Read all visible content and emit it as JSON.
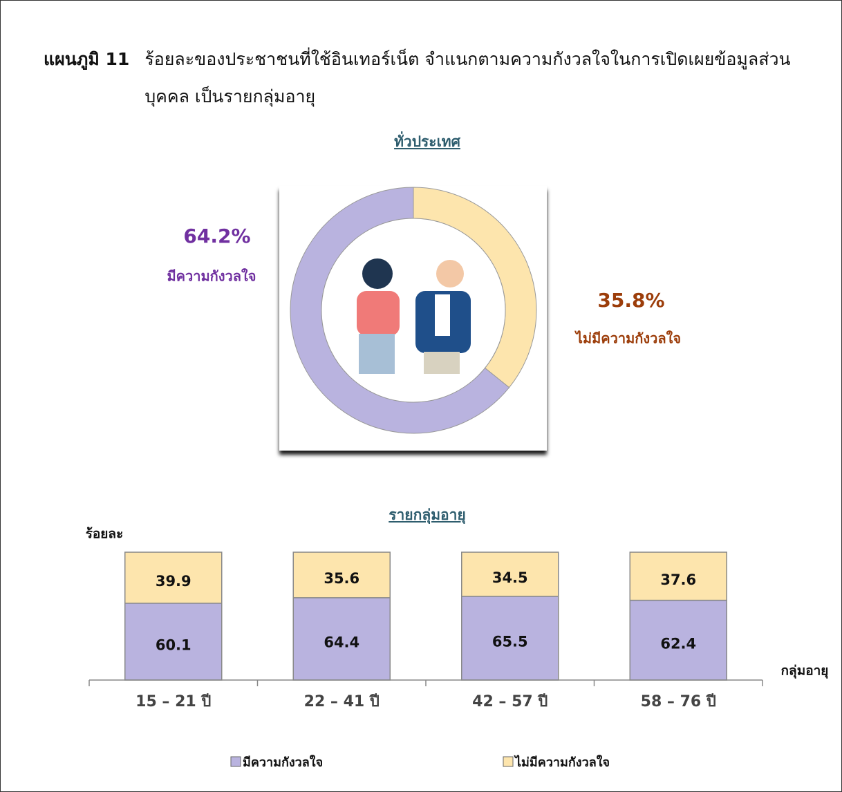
{
  "header": {
    "label": "แผนภูมิ 11",
    "title": "ร้อยละของประชาชนที่ใช้อินเทอร์เน็ต  จำแนกตามความกังวลใจในการเปิดเผยข้อมูลส่วนบุคคล  เป็นรายกลุ่มอายุ"
  },
  "chart_data": [
    {
      "type": "pie",
      "title": "ทั่วประเทศ",
      "categories": [
        "มีความกังวลใจ",
        "ไม่มีความกังวลใจ"
      ],
      "values": [
        64.2,
        35.8
      ],
      "value_labels": [
        "64.2%",
        "35.8%"
      ],
      "colors": [
        "#b9b3df",
        "#fde5ad"
      ],
      "label_colors": [
        "#7030a0",
        "#9c3d0a"
      ]
    },
    {
      "type": "bar",
      "stacked": true,
      "title": "รายกลุ่มอายุ",
      "y_label": "ร้อยละ",
      "x_label": "กลุ่มอายุ",
      "categories": [
        "15 – 21 ปี",
        "22 – 41 ปี",
        "42 – 57 ปี",
        "58 – 76 ปี"
      ],
      "series": [
        {
          "name": "มีความกังวลใจ",
          "color": "#b9b3df",
          "values": [
            60.1,
            64.4,
            65.5,
            62.4
          ]
        },
        {
          "name": "ไม่มีความกังวลใจ",
          "color": "#fde5ad",
          "values": [
            39.9,
            35.6,
            34.5,
            37.6
          ]
        }
      ],
      "ylim": [
        0,
        100
      ]
    }
  ]
}
